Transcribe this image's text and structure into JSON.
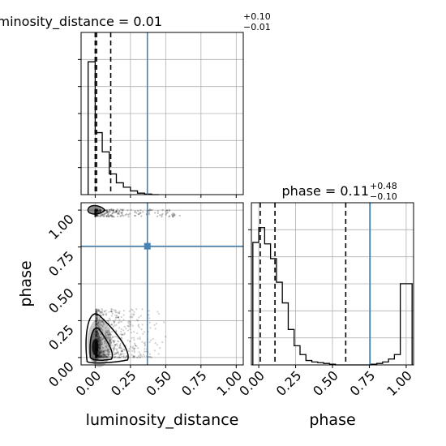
{
  "chart_data": [
    {
      "type": "histogram",
      "panel": "luminosity_distance-marginal",
      "title": {
        "param": "luminosity_distance",
        "median": "0.01",
        "plus": "+0.10",
        "minus": "−0.01"
      },
      "xlim": [
        -0.1,
        1.05
      ],
      "bins": [
        -0.05,
        0.0,
        0.05,
        0.1,
        0.15,
        0.2,
        0.25,
        0.3,
        0.35,
        0.4,
        0.45
      ],
      "counts": [
        0.9,
        0.42,
        0.29,
        0.14,
        0.08,
        0.05,
        0.025,
        0.01,
        0.004,
        0.0
      ],
      "ymax": 1.0,
      "quantiles": [
        0.0,
        0.01,
        0.11
      ],
      "truth": 0.37,
      "grid": true
    },
    {
      "type": "scatter",
      "panel": "joint",
      "xlabel": "luminosity_distance",
      "ylabel": "phase",
      "xlim": [
        -0.1,
        1.05
      ],
      "ylim": [
        -0.05,
        1.05
      ],
      "xticks": [
        "0.00",
        "0.25",
        "0.50",
        "0.75",
        "1.00"
      ],
      "yticks": [
        "0.00",
        "0.25",
        "0.50",
        "0.75",
        "1.00"
      ],
      "truth": {
        "x": 0.37,
        "y": 0.755
      },
      "grid": true
    },
    {
      "type": "histogram",
      "panel": "phase-marginal",
      "title": {
        "param": "phase",
        "median": "0.11",
        "plus": "+0.48",
        "minus": "−0.10"
      },
      "xlabel": "phase",
      "xlim": [
        -0.05,
        1.05
      ],
      "xticks": [
        "0.00",
        "0.25",
        "0.50",
        "0.75",
        "1.00"
      ],
      "bins": [
        -0.04,
        0.0,
        0.04,
        0.08,
        0.12,
        0.16,
        0.2,
        0.24,
        0.28,
        0.32,
        0.36,
        0.4,
        0.44,
        0.48,
        0.52,
        0.56,
        0.6,
        0.64,
        0.68,
        0.72,
        0.76,
        0.8,
        0.84,
        0.88,
        0.92,
        0.96,
        1.0,
        1.04
      ],
      "counts": [
        0.83,
        0.93,
        0.82,
        0.72,
        0.56,
        0.42,
        0.24,
        0.13,
        0.07,
        0.03,
        0.02,
        0.015,
        0.01,
        0.005,
        0.0,
        0.0,
        0.0,
        0.0,
        0.0,
        0.0,
        0.005,
        0.01,
        0.02,
        0.04,
        0.07,
        0.55,
        0.55
      ],
      "ymax": 1.0,
      "quantiles": [
        0.01,
        0.11,
        0.59
      ],
      "truth": 0.755,
      "grid": true
    }
  ]
}
